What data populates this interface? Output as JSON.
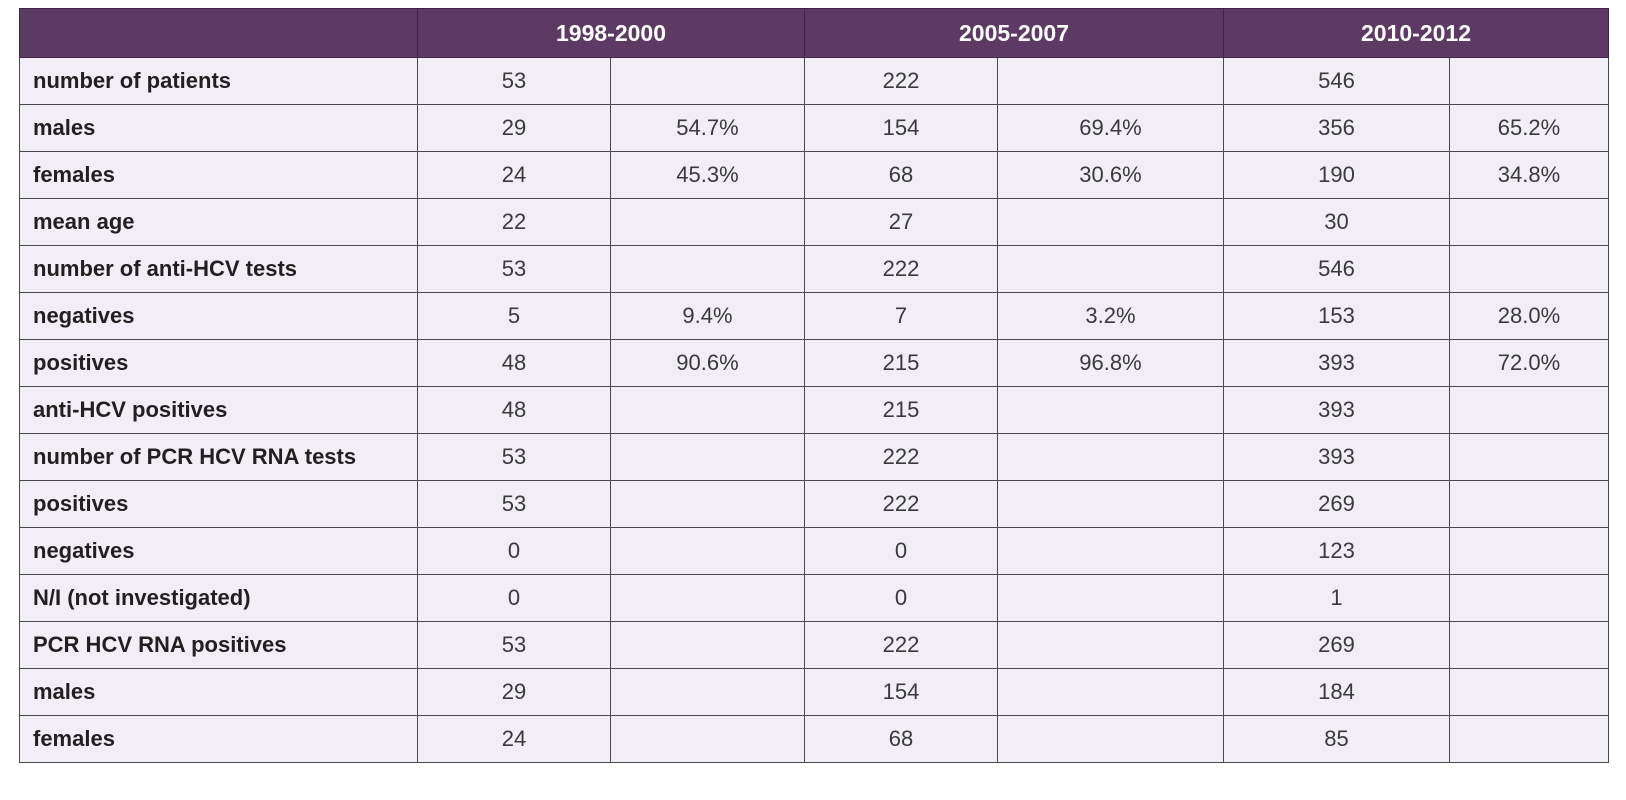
{
  "table": {
    "headers": [
      "",
      "1998-2000",
      "2005-2007",
      "2010-2012"
    ],
    "rows": [
      {
        "label": "number of patients",
        "cells": [
          "53",
          "",
          "222",
          "",
          "546",
          ""
        ]
      },
      {
        "label": "males",
        "cells": [
          "29",
          "54.7%",
          "154",
          "69.4%",
          "356",
          "65.2%"
        ]
      },
      {
        "label": "females",
        "cells": [
          "24",
          "45.3%",
          "68",
          "30.6%",
          "190",
          "34.8%"
        ]
      },
      {
        "label": "mean age",
        "cells": [
          "22",
          "",
          "27",
          "",
          "30",
          ""
        ]
      },
      {
        "label": "number of anti-HCV tests",
        "cells": [
          "53",
          "",
          "222",
          "",
          "546",
          ""
        ]
      },
      {
        "label": "negatives",
        "cells": [
          "5",
          "9.4%",
          "7",
          "3.2%",
          "153",
          "28.0%"
        ]
      },
      {
        "label": "positives",
        "cells": [
          "48",
          "90.6%",
          "215",
          "96.8%",
          "393",
          "72.0%"
        ]
      },
      {
        "label": "anti-HCV positives",
        "cells": [
          "48",
          "",
          "215",
          "",
          "393",
          ""
        ]
      },
      {
        "label": "number of PCR HCV RNA tests",
        "cells": [
          "53",
          "",
          "222",
          "",
          "393",
          ""
        ]
      },
      {
        "label": "positives",
        "cells": [
          "53",
          "",
          "222",
          "",
          "269",
          ""
        ]
      },
      {
        "label": "negatives",
        "cells": [
          "0",
          "",
          "0",
          "",
          "123",
          ""
        ]
      },
      {
        "label": "N/I (not investigated)",
        "cells": [
          "0",
          "",
          "0",
          "",
          "1",
          ""
        ]
      },
      {
        "label": "PCR HCV RNA positives",
        "cells": [
          "53",
          "",
          "222",
          "",
          "269",
          ""
        ]
      },
      {
        "label": "males",
        "cells": [
          "29",
          "",
          "154",
          "",
          "184",
          ""
        ]
      },
      {
        "label": "females",
        "cells": [
          "24",
          "",
          "68",
          "",
          "85",
          ""
        ]
      }
    ]
  },
  "colors": {
    "header_bg": "#5d3a63",
    "header_text": "#ffffff",
    "cell_bg": "#f1eef5",
    "border": "#4a4a4a"
  }
}
